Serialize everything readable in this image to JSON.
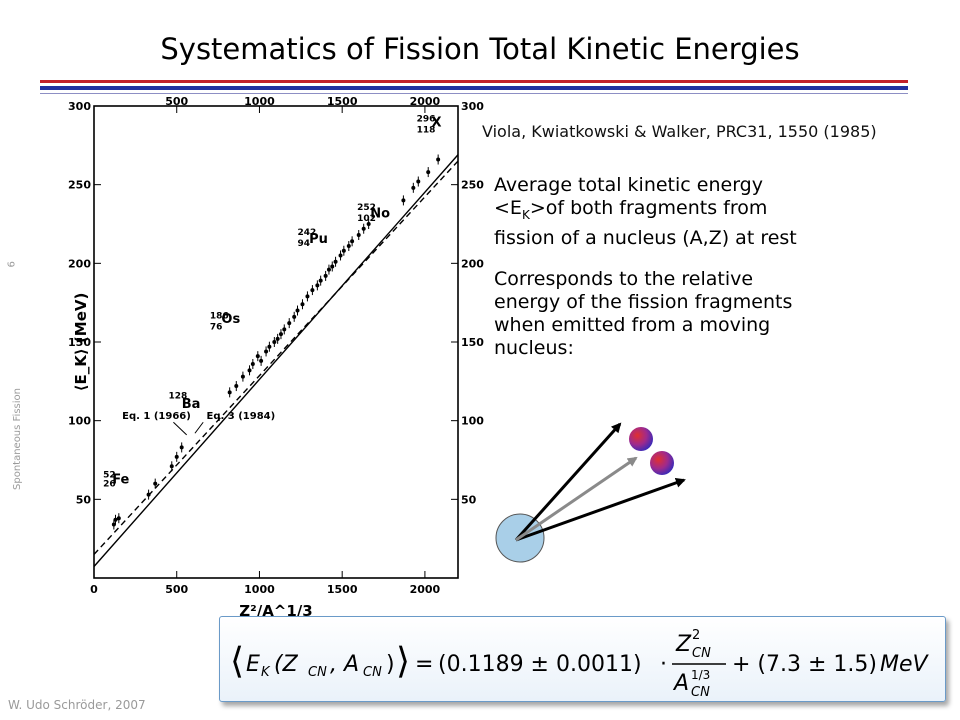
{
  "slide": {
    "title": "Systematics of Fission Total Kinetic Energies",
    "slide_number": "6",
    "section": "Spontaneous Fission",
    "author": "W. Udo Schröder, 2007",
    "reference": "Viola, Kwiatkowski & Walker, PRC31, 1550 (1985)",
    "paragraph1": {
      "line1": "Average total kinetic energy",
      "bracket_open": "<E",
      "sub": "K",
      "line2_rest": ">of both fragments from",
      "line3": "fission of a nucleus (A,Z) at rest"
    },
    "paragraph2": {
      "line1": "Corresponds to the relative",
      "line2": "energy of the fission fragments",
      "line3": "when emitted from a moving",
      "line4": "nucleus:"
    },
    "formula": {
      "lhs_E": "E",
      "lhs_sub_K": "K",
      "lhs_args": "(Z",
      "sub_CN": "CN",
      "comma_A": ", A",
      "coef": "(0.1189 ± 0.0011)",
      "num_Z": "Z",
      "num_sup": "2",
      "den_A": "A",
      "den_sup": "1/3",
      "plus": "+ (7.3 ± 1.5)",
      "unit": "MeV"
    }
  },
  "chart_data": {
    "type": "scatter",
    "xlabel": "Z²/A^1/3",
    "ylabel": "⟨E_K⟩ (MeV)",
    "xlim": [
      0,
      2200
    ],
    "ylim": [
      0,
      300
    ],
    "x_ticks": [
      0,
      500,
      1000,
      1500,
      2000
    ],
    "y_ticks": [
      50,
      100,
      150,
      200,
      250,
      300
    ],
    "top_x_ticks": [
      500,
      1000,
      1500,
      2000
    ],
    "right_y_ticks": [
      50,
      100,
      150,
      200,
      250,
      300
    ],
    "lines": [
      {
        "name": "Eq. 1 (1966)",
        "style": "dashed",
        "x": [
          0,
          2200
        ],
        "y": [
          15,
          265
        ]
      },
      {
        "name": "Eq. 3 (1984)",
        "style": "solid",
        "x": [
          0,
          2200
        ],
        "y": [
          7.3,
          269
        ]
      }
    ],
    "annotations": [
      {
        "text": "52",
        "x": 55,
        "y": 64
      },
      {
        "text": "26",
        "x": 55,
        "y": 58
      },
      {
        "text": "Fe",
        "x": 110,
        "y": 60
      },
      {
        "text": "128",
        "x": 450,
        "y": 114
      },
      {
        "text": "Ba",
        "x": 530,
        "y": 108
      },
      {
        "text": "186",
        "x": 700,
        "y": 165
      },
      {
        "text": "76",
        "x": 700,
        "y": 158
      },
      {
        "text": "Os",
        "x": 770,
        "y": 162
      },
      {
        "text": "242",
        "x": 1230,
        "y": 218
      },
      {
        "text": "94",
        "x": 1230,
        "y": 211
      },
      {
        "text": "Pu",
        "x": 1300,
        "y": 213
      },
      {
        "text": "252",
        "x": 1590,
        "y": 234
      },
      {
        "text": "102",
        "x": 1590,
        "y": 227
      },
      {
        "text": "No",
        "x": 1670,
        "y": 229
      },
      {
        "text": "296",
        "x": 1950,
        "y": 290
      },
      {
        "text": "118",
        "x": 1950,
        "y": 283
      },
      {
        "text": "X",
        "x": 2040,
        "y": 287
      },
      {
        "text": "Eq. 1 (1966)",
        "x": 170,
        "y": 101
      },
      {
        "text": "Eq. 3 (1984)",
        "x": 680,
        "y": 101
      }
    ],
    "points": [
      [
        120,
        34
      ],
      [
        130,
        37
      ],
      [
        150,
        38
      ],
      [
        330,
        53
      ],
      [
        370,
        60
      ],
      [
        470,
        71
      ],
      [
        500,
        77
      ],
      [
        530,
        83
      ],
      [
        820,
        118
      ],
      [
        860,
        122
      ],
      [
        900,
        128
      ],
      [
        940,
        132
      ],
      [
        960,
        136
      ],
      [
        990,
        141
      ],
      [
        1010,
        138
      ],
      [
        1040,
        144
      ],
      [
        1060,
        147
      ],
      [
        1090,
        150
      ],
      [
        1110,
        152
      ],
      [
        1130,
        155
      ],
      [
        1150,
        158
      ],
      [
        1180,
        162
      ],
      [
        1210,
        166
      ],
      [
        1230,
        170
      ],
      [
        1260,
        174
      ],
      [
        1290,
        179
      ],
      [
        1320,
        183
      ],
      [
        1350,
        186
      ],
      [
        1370,
        189
      ],
      [
        1400,
        192
      ],
      [
        1420,
        196
      ],
      [
        1440,
        198
      ],
      [
        1460,
        201
      ],
      [
        1490,
        205
      ],
      [
        1510,
        208
      ],
      [
        1540,
        211
      ],
      [
        1560,
        214
      ],
      [
        1600,
        218
      ],
      [
        1630,
        222
      ],
      [
        1660,
        225
      ],
      [
        1870,
        240
      ],
      [
        1930,
        248
      ],
      [
        1960,
        252
      ],
      [
        2020,
        258
      ],
      [
        2080,
        266
      ]
    ]
  }
}
